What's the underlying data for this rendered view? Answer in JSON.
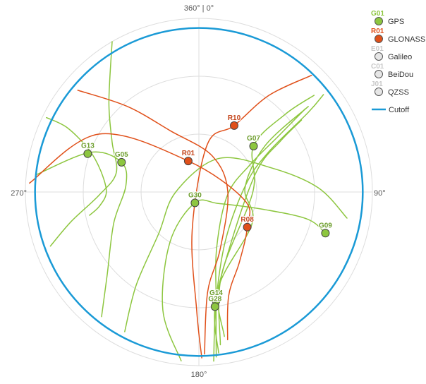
{
  "chart_data": {
    "type": "scatter",
    "projection": "polar-sky",
    "radial_axis": "elevation",
    "elevation_range": [
      0,
      90
    ],
    "grid": true,
    "legend_position": "top-right",
    "directions": {
      "north": "360° | 0°",
      "east": "90°",
      "south": "180°",
      "west": "270°"
    },
    "cutoff_elevation": 5,
    "legend": [
      {
        "code": "G01",
        "name": "GPS",
        "color": "#8dc63f"
      },
      {
        "code": "R01",
        "name": "GLONASS",
        "color": "#e0501a"
      },
      {
        "code": "E01",
        "name": "Galileo",
        "color": "#e6e6e6"
      },
      {
        "code": "C01",
        "name": "BeiDou",
        "color": "#e6e6e6"
      },
      {
        "code": "J01",
        "name": "QZSS",
        "color": "#e6e6e6"
      },
      {
        "code": "",
        "name": "Cutoff",
        "color": "#1a9ad6",
        "type": "line"
      }
    ],
    "satellites": [
      {
        "id": "G13",
        "system": "GPS",
        "azimuth": 289,
        "elevation": 29
      },
      {
        "id": "G05",
        "system": "GPS",
        "azimuth": 291,
        "elevation": 47
      },
      {
        "id": "G30",
        "system": "GPS",
        "azimuth": 200,
        "elevation": 84
      },
      {
        "id": "G07",
        "system": "GPS",
        "azimuth": 50,
        "elevation": 53
      },
      {
        "id": "G09",
        "system": "GPS",
        "azimuth": 108,
        "elevation": 21
      },
      {
        "id": "G14",
        "system": "GPS",
        "azimuth": 171,
        "elevation": 33
      },
      {
        "id": "G28",
        "system": "GPS",
        "azimuth": 172,
        "elevation": 30
      },
      {
        "id": "R01",
        "system": "GLONASS",
        "azimuth": 341,
        "elevation": 73
      },
      {
        "id": "R10",
        "system": "GLONASS",
        "azimuth": 28,
        "elevation": 51
      },
      {
        "id": "R08",
        "system": "GLONASS",
        "azimuth": 126,
        "elevation": 59
      }
    ],
    "tracks": [
      {
        "system": "GPS",
        "points": [
          [
            330,
            0
          ],
          [
            315,
            24
          ],
          [
            300,
            38
          ],
          [
            283,
            46
          ],
          [
            268,
            38
          ],
          [
            257,
            22
          ],
          [
            250,
            8
          ]
        ]
      },
      {
        "system": "GPS",
        "points": [
          [
            276,
            5
          ],
          [
            290,
            30
          ],
          [
            291,
            47
          ],
          [
            275,
            52
          ],
          [
            250,
            43
          ],
          [
            228,
            26
          ],
          [
            218,
            8
          ]
        ]
      },
      {
        "system": "GPS",
        "points": [
          [
            296,
            2
          ],
          [
            296,
            14
          ],
          [
            291,
            29
          ],
          [
            282,
            38
          ],
          [
            270,
            42
          ],
          [
            262,
            38
          ],
          [
            258,
            32
          ]
        ]
      },
      {
        "system": "GPS",
        "points": [
          [
            208,
            8
          ],
          [
            214,
            32
          ],
          [
            224,
            60
          ],
          [
            270,
            78
          ],
          [
            30,
            70
          ],
          [
            72,
            50
          ],
          [
            88,
            28
          ],
          [
            100,
            12
          ]
        ]
      },
      {
        "system": "GPS",
        "points": [
          [
            186,
            2
          ],
          [
            197,
            26
          ],
          [
            210,
            60
          ],
          [
            200,
            84
          ],
          [
            120,
            78
          ],
          [
            105,
            55
          ],
          [
            104,
            32
          ],
          [
            108,
            21
          ]
        ]
      },
      {
        "system": "GPS",
        "points": [
          [
            174,
            4
          ],
          [
            171,
            33
          ],
          [
            162,
            60
          ],
          [
            95,
            75
          ],
          [
            62,
            60
          ],
          [
            55,
            40
          ],
          [
            52,
            20
          ]
        ]
      },
      {
        "system": "GPS",
        "points": [
          [
            175,
            2
          ],
          [
            171,
            33
          ],
          [
            150,
            62
          ],
          [
            80,
            65
          ],
          [
            60,
            48
          ],
          [
            54,
            20
          ],
          [
            52,
            8
          ]
        ]
      },
      {
        "system": "GPS",
        "points": [
          [
            173,
            6
          ],
          [
            172,
            30
          ],
          [
            145,
            60
          ],
          [
            70,
            58
          ],
          [
            58,
            40
          ],
          [
            55,
            25
          ]
        ]
      },
      {
        "system": "GPS",
        "points": [
          [
            172,
            10
          ],
          [
            165,
            45
          ],
          [
            90,
            62
          ],
          [
            50,
            53
          ],
          [
            48,
            30
          ],
          [
            50,
            12
          ]
        ]
      },
      {
        "system": "GPS",
        "points": [
          [
            170,
            14
          ],
          [
            168,
            40
          ],
          [
            120,
            58
          ],
          [
            85,
            66
          ],
          [
            55,
            48
          ],
          [
            52,
            18
          ]
        ]
      },
      {
        "system": "GLONASS",
        "points": [
          [
            273,
            2
          ],
          [
            300,
            30
          ],
          [
            341,
            73
          ],
          [
            100,
            66
          ],
          [
            126,
            59
          ],
          [
            150,
            48
          ],
          [
            164,
            34
          ],
          [
            169,
            12
          ]
        ]
      },
      {
        "system": "GLONASS",
        "points": [
          [
            310,
            8
          ],
          [
            320,
            32
          ],
          [
            335,
            55
          ],
          [
            20,
            70
          ],
          [
            90,
            75
          ],
          [
            160,
            58
          ],
          [
            175,
            38
          ],
          [
            178,
            6
          ]
        ]
      },
      {
        "system": "GLONASS",
        "points": [
          [
            44,
            6
          ],
          [
            36,
            28
          ],
          [
            28,
            51
          ],
          [
            10,
            65
          ],
          [
            190,
            70
          ],
          [
            181,
            28
          ],
          [
            179,
            4
          ]
        ]
      }
    ]
  }
}
